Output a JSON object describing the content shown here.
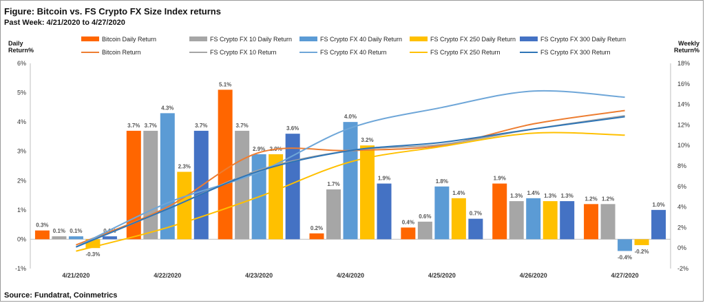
{
  "header": {
    "title": "Figure: Bitcoin vs. FS Crypto FX Size Index returns",
    "subtitle": "Past Week: 4/21/2020 to 4/27/2020"
  },
  "footer": {
    "source": "Source: Fundatrat, Coinmetrics"
  },
  "chart_data": {
    "type": "bar",
    "title": "Figure: Bitcoin vs. FS Crypto FX Size Index returns",
    "categories": [
      "4/21/2020",
      "4/22/2020",
      "4/23/2020",
      "4/24/2020",
      "4/25/2020",
      "4/26/2020",
      "4/27/2020"
    ],
    "y_left": {
      "label": "Daily Return%",
      "lim": [
        -1,
        6
      ],
      "ticks": [
        "-1%",
        "0%",
        "1%",
        "2%",
        "3%",
        "4%",
        "5%",
        "6%"
      ]
    },
    "y_right": {
      "label": "Weekly Return%",
      "lim": [
        -2,
        18
      ],
      "ticks": [
        "-2%",
        "0%",
        "2%",
        "4%",
        "6%",
        "8%",
        "10%",
        "12%",
        "14%",
        "16%",
        "18%"
      ]
    },
    "grid": false,
    "legend_position": "top",
    "bar_series": [
      {
        "name": "Bitcoin Daily Return",
        "color": "#ff6600",
        "values": [
          0.3,
          3.7,
          5.1,
          0.2,
          0.4,
          1.9,
          1.2
        ],
        "labels": [
          "0.3%",
          "3.7%",
          "5.1%",
          "0.2%",
          "0.4%",
          "1.9%",
          "1.2%"
        ]
      },
      {
        "name": "FS Crypto FX 10 Daily Return",
        "color": "#a6a6a6",
        "values": [
          0.1,
          3.7,
          3.7,
          1.7,
          0.6,
          1.3,
          1.2
        ],
        "labels": [
          "0.1%",
          "3.7%",
          "3.7%",
          "1.7%",
          "0.6%",
          "1.3%",
          "1.2%"
        ]
      },
      {
        "name": "FS Crypto FX 40 Daily Return",
        "color": "#5b9bd5",
        "values": [
          0.1,
          4.3,
          2.9,
          4.0,
          1.8,
          1.4,
          -0.4
        ],
        "labels": [
          "0.1%",
          "4.3%",
          "2.9%",
          "4.0%",
          "1.8%",
          "1.4%",
          "-0.4%"
        ]
      },
      {
        "name": "FS Crypto FX 250 Daily Return",
        "color": "#ffc000",
        "values": [
          -0.3,
          2.3,
          2.9,
          3.2,
          1.4,
          1.3,
          -0.2
        ],
        "labels": [
          "-0.3%",
          "2.3%",
          "2.9%",
          "3.2%",
          "1.4%",
          "1.3%",
          "-0.2%"
        ]
      },
      {
        "name": "FS Crypto FX 300 Daily Return",
        "color": "#4472c4",
        "values": [
          0.1,
          3.7,
          3.6,
          1.9,
          0.7,
          1.3,
          1.0
        ],
        "labels": [
          "0.1%",
          "3.7%",
          "3.6%",
          "1.9%",
          "0.7%",
          "1.3%",
          "1.0%"
        ]
      }
    ],
    "line_series": [
      {
        "name": "Bitcoin Return",
        "color": "#ed7d31",
        "values": [
          0.3,
          4.0,
          9.3,
          9.5,
          10.0,
          12.1,
          13.4
        ]
      },
      {
        "name": "FS Crypto FX 10 Return",
        "color": "#a5a5a5",
        "values": [
          0.1,
          3.8,
          7.6,
          9.5,
          10.1,
          11.6,
          12.9
        ]
      },
      {
        "name": "FS Crypto FX 40 Return",
        "color": "#6ea6d8",
        "values": [
          0.1,
          4.4,
          7.4,
          11.7,
          13.7,
          15.3,
          14.7
        ]
      },
      {
        "name": "FS Crypto FX 250 Return",
        "color": "#ffc000",
        "values": [
          -0.3,
          2.0,
          5.0,
          8.4,
          9.9,
          11.2,
          11.0
        ]
      },
      {
        "name": "FS Crypto FX 300 Return",
        "color": "#2e75b6",
        "values": [
          0.1,
          3.8,
          7.5,
          9.5,
          10.3,
          11.6,
          12.8
        ]
      }
    ]
  }
}
